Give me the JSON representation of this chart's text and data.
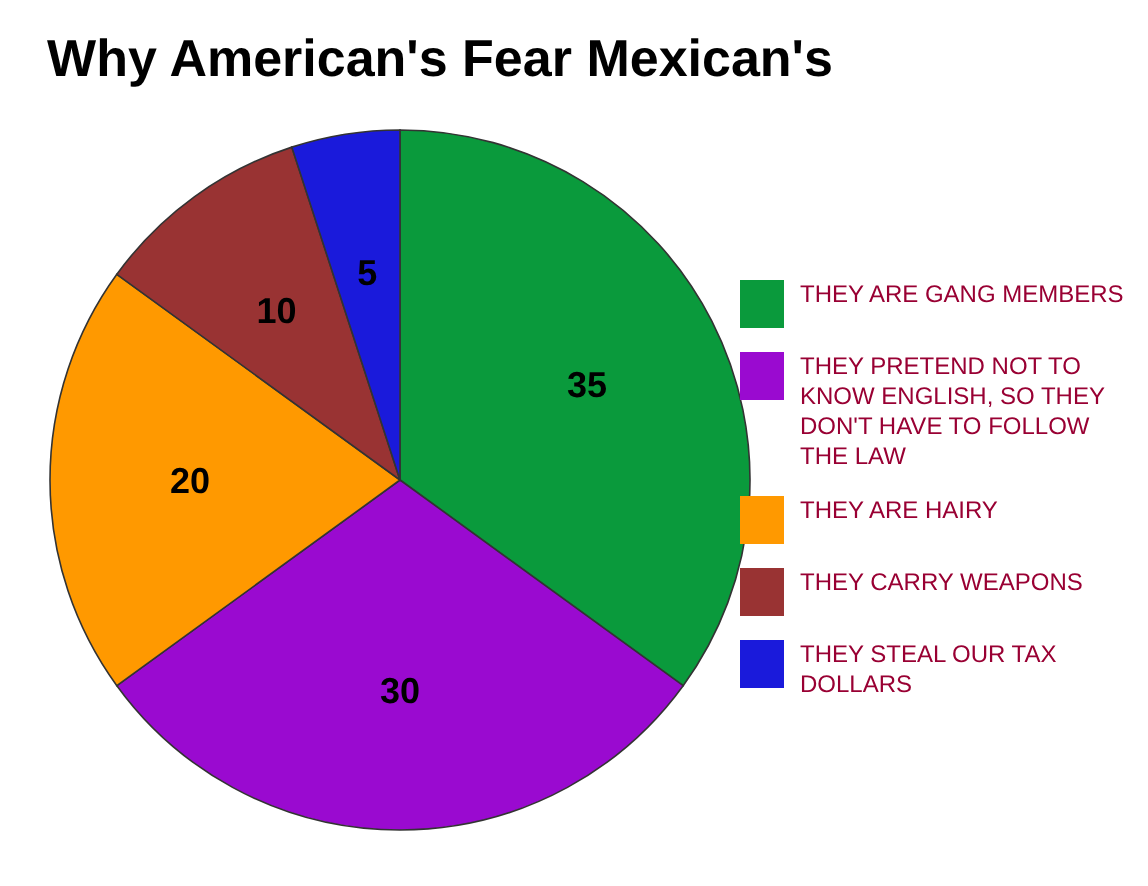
{
  "chart_data": {
    "type": "pie",
    "title": "Why American's Fear Mexican's",
    "categories": [
      "THEY ARE GANG MEMBERS",
      "THEY PRETEND NOT TO KNOW ENGLISH, SO THEY DON'T HAVE TO FOLLOW THE LAW",
      "THEY ARE HAIRY",
      "THEY CARRY WEAPONS",
      "THEY STEAL OUR TAX DOLLARS"
    ],
    "values": [
      35,
      30,
      20,
      10,
      5
    ],
    "colors": [
      "#0a9a3c",
      "#9a0ad0",
      "#ff9900",
      "#993333",
      "#1a1adb"
    ],
    "data_labels": true,
    "legend": "right"
  }
}
